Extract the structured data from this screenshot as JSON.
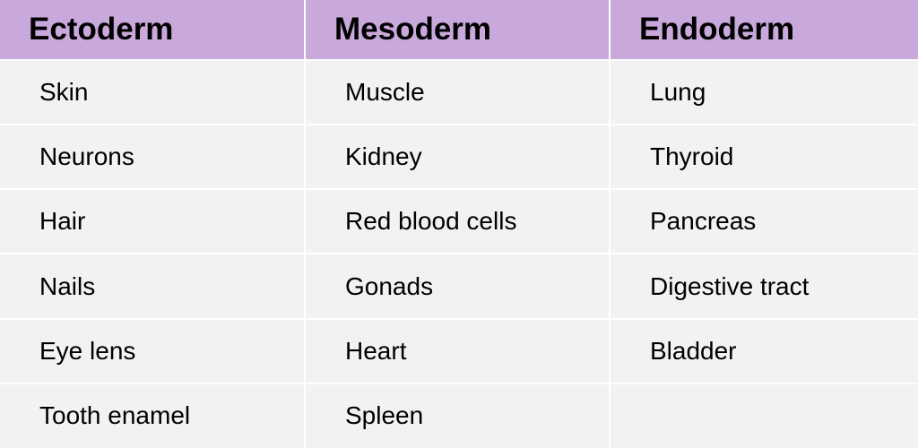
{
  "table": {
    "headers": [
      "Ectoderm",
      "Mesoderm",
      "Endoderm"
    ],
    "rows": [
      [
        "Skin",
        "Muscle",
        "Lung"
      ],
      [
        "Neurons",
        "Kidney",
        "Thyroid"
      ],
      [
        "Hair",
        "Red blood cells",
        "Pancreas"
      ],
      [
        "Nails",
        "Gonads",
        "Digestive tract"
      ],
      [
        "Eye lens",
        "Heart",
        "Bladder"
      ],
      [
        "Tooth enamel",
        "Spleen",
        ""
      ]
    ]
  },
  "colors": {
    "header_bg": "#c9a8dc",
    "cell_bg": "#f2f2f2",
    "grid_line": "#ffffff"
  }
}
